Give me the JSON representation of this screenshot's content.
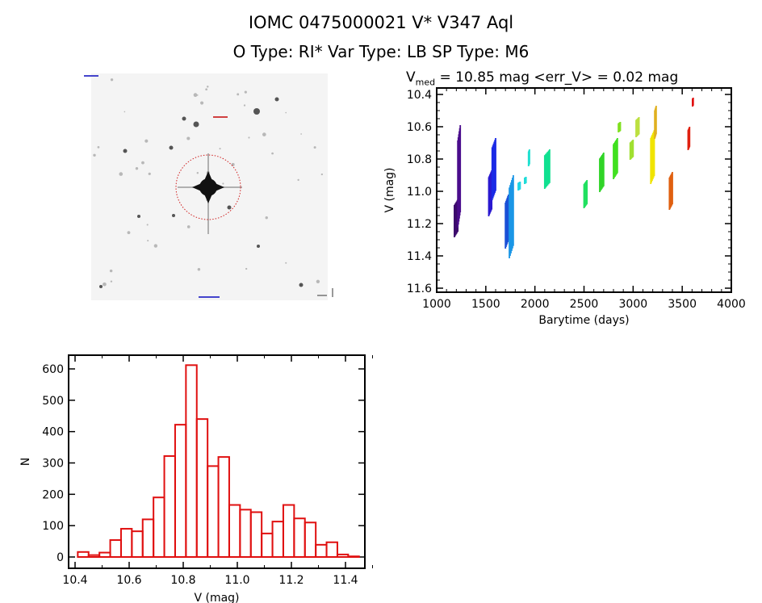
{
  "title_line1": "IOMC 0475000021     V* V347 Aql",
  "title_line2": "O Type: RI*  Var Type: LB   SP Type: M6",
  "image_panel": {
    "description_label": "sky cutout"
  },
  "chart_data": [
    {
      "type": "scatter",
      "title_prefix": "V",
      "title_sub": "med",
      "title_rest": " = 10.85 mag <err_V> = 0.02 mag",
      "xlabel": "Barytime (days)",
      "ylabel": "V (mag)",
      "xlim": [
        1000,
        4000
      ],
      "ylim": [
        11.62,
        10.38
      ],
      "xticks": [
        "1000",
        "1500",
        "2000",
        "2500",
        "3000",
        "3500",
        "4000"
      ],
      "yticks": [
        "10.4",
        "10.6",
        "10.8",
        "11.0",
        "11.2",
        "11.4",
        "11.6"
      ],
      "segments": [
        {
          "t": [
            1180,
            1215
          ],
          "mag": [
            11.05,
            11.28
          ],
          "color": "#3c0a6c"
        },
        {
          "t": [
            1215,
            1240
          ],
          "mag": [
            10.59,
            11.22
          ],
          "color": "#4a0c8c"
        },
        {
          "t": [
            1530,
            1560
          ],
          "mag": [
            10.87,
            11.15
          ],
          "color": "#2a18d0"
        },
        {
          "t": [
            1565,
            1600
          ],
          "mag": [
            10.67,
            11.05
          ],
          "color": "#1a2ae6"
        },
        {
          "t": [
            1700,
            1730
          ],
          "mag": [
            11.02,
            11.35
          ],
          "color": "#1a50d6"
        },
        {
          "t": [
            1740,
            1780
          ],
          "mag": [
            10.9,
            11.41
          ],
          "color": "#1a96e6"
        },
        {
          "t": [
            1830,
            1850
          ],
          "mag": [
            10.94,
            10.99
          ],
          "color": "#20d4e6"
        },
        {
          "t": [
            1895,
            1910
          ],
          "mag": [
            10.91,
            10.95
          ],
          "color": "#20dcd8"
        },
        {
          "t": [
            1935,
            1945
          ],
          "mag": [
            10.74,
            10.84
          ],
          "color": "#20e0d0"
        },
        {
          "t": [
            2100,
            2150
          ],
          "mag": [
            10.74,
            10.98
          ],
          "color": "#10e090"
        },
        {
          "t": [
            2500,
            2530
          ],
          "mag": [
            10.93,
            11.1
          ],
          "color": "#20e060"
        },
        {
          "t": [
            2660,
            2700
          ],
          "mag": [
            10.76,
            11.0
          ],
          "color": "#30d428"
        },
        {
          "t": [
            2800,
            2840
          ],
          "mag": [
            10.67,
            10.92
          ],
          "color": "#40e020"
        },
        {
          "t": [
            2850,
            2870
          ],
          "mag": [
            10.57,
            10.63
          ],
          "color": "#80e020"
        },
        {
          "t": [
            2970,
            3000
          ],
          "mag": [
            10.68,
            10.8
          ],
          "color": "#a0e030"
        },
        {
          "t": [
            3030,
            3060
          ],
          "mag": [
            10.54,
            10.66
          ],
          "color": "#bce040"
        },
        {
          "t": [
            3180,
            3215
          ],
          "mag": [
            10.62,
            10.95
          ],
          "color": "#f0e400"
        },
        {
          "t": [
            3220,
            3235
          ],
          "mag": [
            10.47,
            10.67
          ],
          "color": "#e0b020"
        },
        {
          "t": [
            3370,
            3400
          ],
          "mag": [
            10.88,
            11.11
          ],
          "color": "#e06010"
        },
        {
          "t": [
            3560,
            3575
          ],
          "mag": [
            10.6,
            10.74
          ],
          "color": "#e02010"
        },
        {
          "t": [
            3605,
            3612
          ],
          "mag": [
            10.42,
            10.47
          ],
          "color": "#e01010"
        }
      ]
    },
    {
      "type": "bar",
      "style": "histogram-outline",
      "xlabel": "V (mag)",
      "ylabel": "N",
      "xlim": [
        10.37,
        11.48
      ],
      "ylim": [
        -20,
        630
      ],
      "bin_start": 10.41,
      "bin_width": 0.04,
      "values": [
        16,
        6,
        14,
        54,
        90,
        82,
        120,
        190,
        322,
        422,
        612,
        440,
        290,
        319,
        166,
        151,
        143,
        75,
        113,
        166,
        123,
        110,
        39,
        47,
        8,
        2
      ],
      "xticks": [
        "10.4",
        "10.6",
        "10.8",
        "11.0",
        "11.2",
        "11.4"
      ],
      "yticks": [
        "0",
        "100",
        "200",
        "300",
        "400",
        "500",
        "600"
      ],
      "color": "#e01010"
    }
  ]
}
